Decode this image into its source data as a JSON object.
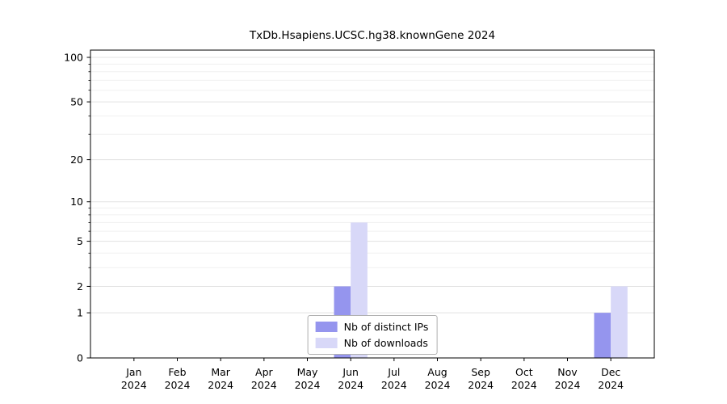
{
  "chart_data": {
    "type": "bar",
    "title": "TxDb.Hsapiens.UCSC.hg38.knownGene 2024",
    "year": "2024",
    "months": [
      "Jan",
      "Feb",
      "Mar",
      "Apr",
      "May",
      "Jun",
      "Jul",
      "Aug",
      "Sep",
      "Oct",
      "Nov",
      "Dec"
    ],
    "series": [
      {
        "name": "Nb of distinct IPs",
        "color": "#9595ee",
        "values": [
          0,
          0,
          0,
          0,
          0,
          2,
          0,
          0,
          0,
          0,
          0,
          1
        ]
      },
      {
        "name": "Nb of downloads",
        "color": "#d8d8f8",
        "values": [
          0,
          0,
          0,
          0,
          0,
          7,
          0,
          0,
          0,
          0,
          0,
          2
        ]
      }
    ],
    "yticks": [
      0,
      1,
      2,
      5,
      10,
      20,
      50,
      100
    ],
    "minor_gridlines": [
      3,
      4,
      6,
      7,
      8,
      9,
      30,
      40,
      60,
      70,
      80,
      90
    ],
    "scale": "log10(1+x)",
    "ylim": [
      0,
      112
    ],
    "grid": "on",
    "legend_position": "lower center",
    "xlabel": "",
    "ylabel": ""
  }
}
